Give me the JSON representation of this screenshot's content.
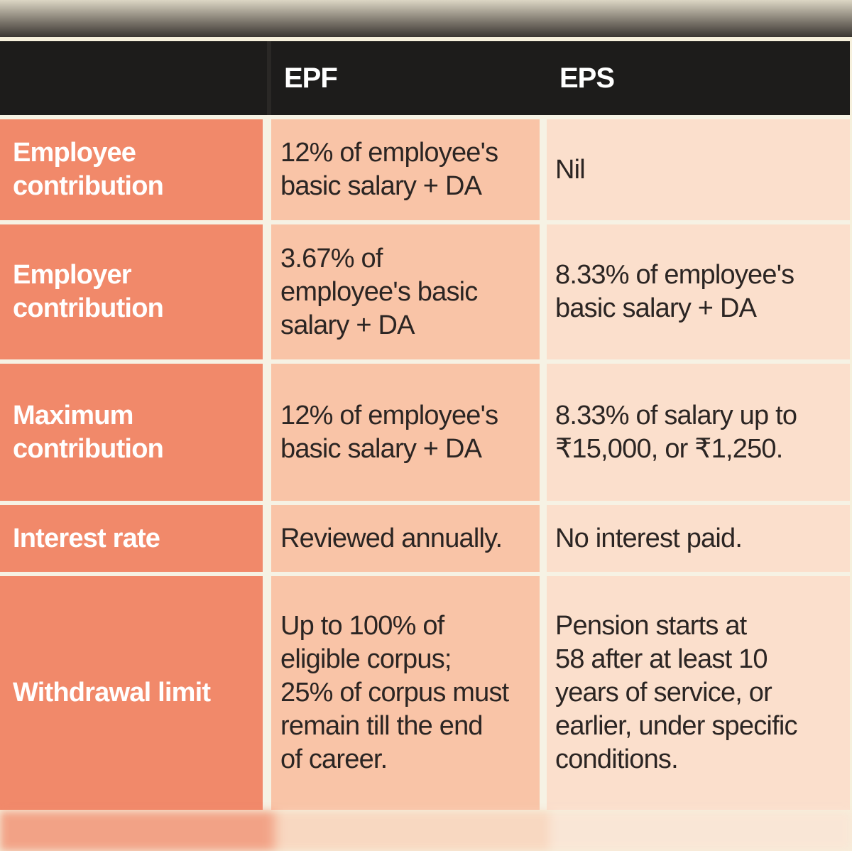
{
  "table": {
    "headers": [
      "",
      "EPF",
      "EPS"
    ],
    "rows": [
      {
        "label": [
          "Employee",
          "contribution"
        ],
        "epf": [
          "12% of employee's",
          "basic salary + DA"
        ],
        "eps": [
          "Nil"
        ]
      },
      {
        "label": [
          "Employer",
          "contribution"
        ],
        "epf": [
          "3.67% of",
          "employee's basic",
          "salary + DA"
        ],
        "eps": [
          "8.33% of employee's",
          "basic salary + DA"
        ]
      },
      {
        "label": [
          "Maximum",
          "contribution"
        ],
        "epf": [
          "12% of employee's",
          "basic salary + DA"
        ],
        "eps": [
          "8.33% of salary up to",
          "₹15,000, or ₹1,250."
        ]
      },
      {
        "label": [
          "Interest rate"
        ],
        "epf": [
          "Reviewed annually."
        ],
        "eps": [
          "No interest paid."
        ]
      },
      {
        "label": [
          "Withdrawal limit"
        ],
        "epf": [
          "Up to 100% of",
          "eligible corpus;",
          "25% of corpus must",
          "remain till the end",
          "of career."
        ],
        "eps": [
          "Pension starts at",
          "58 after at least 10",
          "years of service, or",
          "earlier, under specific",
          "conditions."
        ]
      }
    ]
  }
}
